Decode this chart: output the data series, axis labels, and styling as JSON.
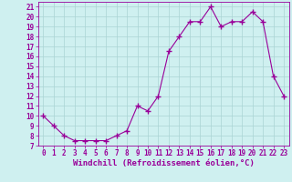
{
  "x": [
    0,
    1,
    2,
    3,
    4,
    5,
    6,
    7,
    8,
    9,
    10,
    11,
    12,
    13,
    14,
    15,
    16,
    17,
    18,
    19,
    20,
    21,
    22,
    23
  ],
  "y": [
    10,
    9,
    8,
    7.5,
    7.5,
    7.5,
    7.5,
    8,
    8.5,
    11,
    10.5,
    12,
    16.5,
    18,
    19.5,
    19.5,
    21,
    19,
    19.5,
    19.5,
    20.5,
    19.5,
    14,
    12
  ],
  "line_color": "#990099",
  "marker": "+",
  "marker_size": 4,
  "marker_linewidth": 1.0,
  "background_color": "#cff0f0",
  "grid_color": "#aad4d4",
  "xlabel": "Windchill (Refroidissement éolien,°C)",
  "xlim": [
    -0.5,
    23.5
  ],
  "ylim": [
    7,
    21.5
  ],
  "xticks": [
    0,
    1,
    2,
    3,
    4,
    5,
    6,
    7,
    8,
    9,
    10,
    11,
    12,
    13,
    14,
    15,
    16,
    17,
    18,
    19,
    20,
    21,
    22,
    23
  ],
  "yticks": [
    7,
    8,
    9,
    10,
    11,
    12,
    13,
    14,
    15,
    16,
    17,
    18,
    19,
    20,
    21
  ],
  "tick_fontsize": 5.5,
  "xlabel_fontsize": 6.5,
  "line_width": 0.8
}
